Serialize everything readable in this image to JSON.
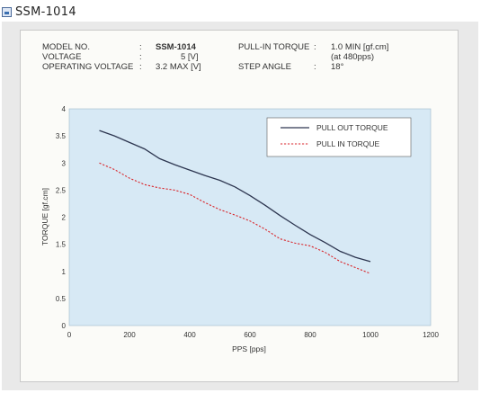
{
  "heading": {
    "title": "SSM-1014"
  },
  "specs": {
    "model_label": "MODEL NO.",
    "model_sep": ":",
    "model_value": "SSM-1014",
    "voltage_label": "VOLTAGE",
    "voltage_sep": ":",
    "voltage_value": "5 [V]",
    "opvolt_label": "OPERATING VOLTAGE",
    "opvolt_sep": ":",
    "opvolt_value": "3.2 MAX [V]",
    "pullin_label": "PULL-IN TORQUE",
    "pullin_sep": ":",
    "pullin_value": "1.0 MIN [gf.cm]",
    "pullin_sub": "(at 480pps)",
    "step_label": "STEP ANGLE",
    "step_sep": ":",
    "step_value": "18°"
  },
  "colors": {
    "plot_bg": "#d7e9f5",
    "pull_out": "#2d3650",
    "pull_in": "#d9262b"
  },
  "chart_data": {
    "type": "line",
    "title": "",
    "xlabel": "PPS  [pps]",
    "ylabel": "TORQUE  [gf.cm]",
    "xlim": [
      0,
      1200
    ],
    "ylim": [
      0,
      4
    ],
    "xticks": [
      0,
      200,
      400,
      600,
      800,
      1000,
      1200
    ],
    "yticks": [
      0,
      0.5,
      1,
      1.5,
      2,
      2.5,
      3,
      3.5,
      4
    ],
    "ytick_labels": [
      "0",
      "0.5",
      "1",
      "1.5",
      "2",
      "2.5",
      "3",
      "3.5",
      "4"
    ],
    "grid": false,
    "legend": "top-right",
    "series": [
      {
        "name": "PULL OUT TORQUE",
        "style": "solid",
        "x": [
          100,
          150,
          200,
          250,
          300,
          350,
          400,
          450,
          500,
          550,
          600,
          650,
          700,
          750,
          800,
          850,
          900,
          950,
          1000
        ],
        "y": [
          3.6,
          3.5,
          3.38,
          3.26,
          3.08,
          2.97,
          2.87,
          2.77,
          2.68,
          2.56,
          2.4,
          2.22,
          2.03,
          1.85,
          1.68,
          1.53,
          1.37,
          1.26,
          1.18
        ]
      },
      {
        "name": "PULL IN TORQUE",
        "style": "dashed",
        "x": [
          100,
          150,
          200,
          250,
          300,
          350,
          400,
          450,
          500,
          550,
          600,
          650,
          700,
          750,
          800,
          850,
          900,
          950,
          1000
        ],
        "y": [
          3.0,
          2.88,
          2.72,
          2.6,
          2.54,
          2.5,
          2.42,
          2.27,
          2.14,
          2.04,
          1.93,
          1.78,
          1.6,
          1.52,
          1.47,
          1.35,
          1.18,
          1.07,
          0.96
        ]
      }
    ]
  }
}
